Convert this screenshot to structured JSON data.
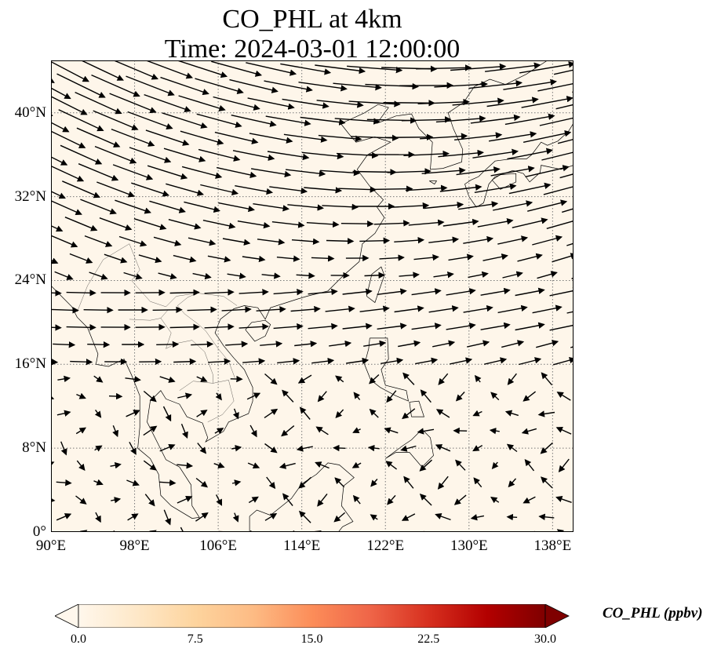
{
  "title": {
    "line1": "CO_PHL at 4km",
    "line2": "Time: 2024-03-01 12:00:00"
  },
  "map": {
    "projection": "plate-carree",
    "lon_range": [
      90,
      140
    ],
    "lat_range": [
      0,
      45
    ],
    "background_color": "#fef6ea",
    "coastline_color": "#000000",
    "gridline_style": "dotted",
    "gridline_color": "#777777",
    "x_ticks": [
      {
        "lon": 90,
        "label": "90°E"
      },
      {
        "lon": 98,
        "label": "98°E"
      },
      {
        "lon": 106,
        "label": "106°E"
      },
      {
        "lon": 114,
        "label": "114°E"
      },
      {
        "lon": 122,
        "label": "122°E"
      },
      {
        "lon": 130,
        "label": "130°E"
      },
      {
        "lon": 138,
        "label": "138°E"
      }
    ],
    "y_ticks": [
      {
        "lat": 0,
        "label": "0°"
      },
      {
        "lat": 8,
        "label": "8°N"
      },
      {
        "lat": 16,
        "label": "16°N"
      },
      {
        "lat": 24,
        "label": "24°N"
      },
      {
        "lat": 32,
        "label": "32°N"
      },
      {
        "lat": 40,
        "label": "40°N"
      }
    ],
    "wind_field": "vector-arrows",
    "arrow_color": "#000000"
  },
  "colorbar": {
    "label": "CO_PHL (ppbv)",
    "min": 0.0,
    "max": 30.0,
    "extend": "both",
    "colormap": "OrRd",
    "colors": [
      "#fff7ec",
      "#fee8c8",
      "#fdd49e",
      "#fdbb84",
      "#fc8d59",
      "#ef6548",
      "#d7301f",
      "#b30000",
      "#7f0000"
    ],
    "ticks": [
      {
        "value": 0.0,
        "label": "0.0"
      },
      {
        "value": 7.5,
        "label": "7.5"
      },
      {
        "value": 15.0,
        "label": "15.0"
      },
      {
        "value": 22.5,
        "label": "22.5"
      },
      {
        "value": 30.0,
        "label": "30.0"
      }
    ]
  }
}
